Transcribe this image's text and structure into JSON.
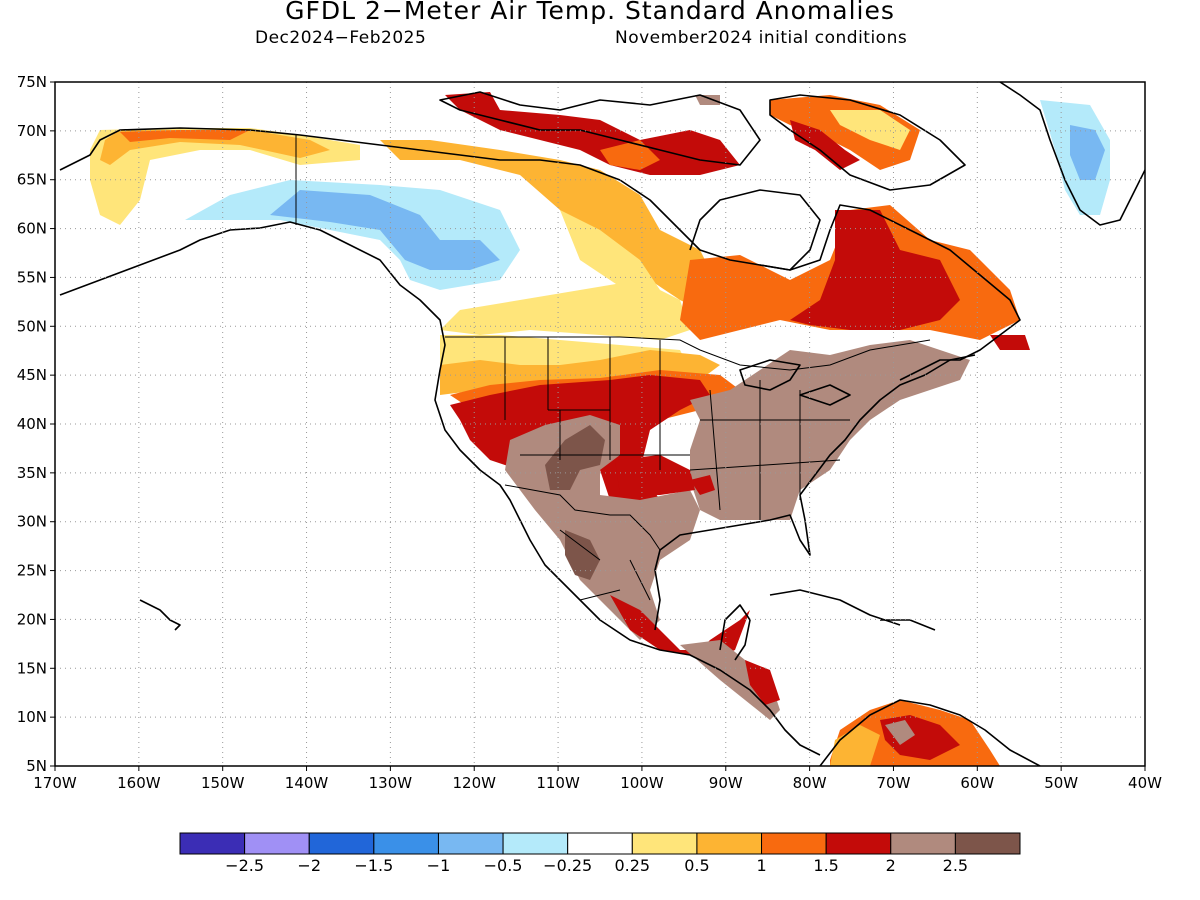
{
  "header": {
    "title": "GFDL 2−Meter Air Temp. Standard Anomalies",
    "period": "Dec2024−Feb2025",
    "init": "November2024 initial conditions"
  },
  "map": {
    "lat_ticks": [
      "75N",
      "70N",
      "65N",
      "60N",
      "55N",
      "50N",
      "45N",
      "40N",
      "35N",
      "30N",
      "25N",
      "20N",
      "15N",
      "10N",
      "5N"
    ],
    "lon_ticks": [
      "170W",
      "160W",
      "150W",
      "140W",
      "130W",
      "120W",
      "110W",
      "100W",
      "90W",
      "80W",
      "70W",
      "60W",
      "50W",
      "40W"
    ],
    "grid": "dotted",
    "anomaly_regions": [
      {
        "name": "alaska-north-slope",
        "category": "1 to 1.5"
      },
      {
        "name": "yukon-bc-cold",
        "category": "-1 to -0.5"
      },
      {
        "name": "hudson-bay-north",
        "category": "1.5 to 2"
      },
      {
        "name": "labrador-quebec",
        "category": "1.5 to 2"
      },
      {
        "name": "us-southwest-mexico",
        "category": "2 to 2.5"
      },
      {
        "name": "eastern-us",
        "category": "2 to 2.5"
      },
      {
        "name": "greenland-east",
        "category": "-0.5 to -0.25"
      }
    ]
  },
  "colorbar": {
    "colors": [
      "#3b2db5",
      "#a090f5",
      "#2166d9",
      "#3a90e8",
      "#78b8f2",
      "#b4eafa",
      "#ffffff",
      "#ffe57a",
      "#fdb433",
      "#f86a0f",
      "#c30b09",
      "#b08a7e",
      "#7d554a"
    ],
    "labels": [
      "−2.5",
      "−2",
      "−1.5",
      "−1",
      "−0.5",
      "−0.25",
      "0.25",
      "0.5",
      "1",
      "1.5",
      "2",
      "2.5"
    ]
  }
}
